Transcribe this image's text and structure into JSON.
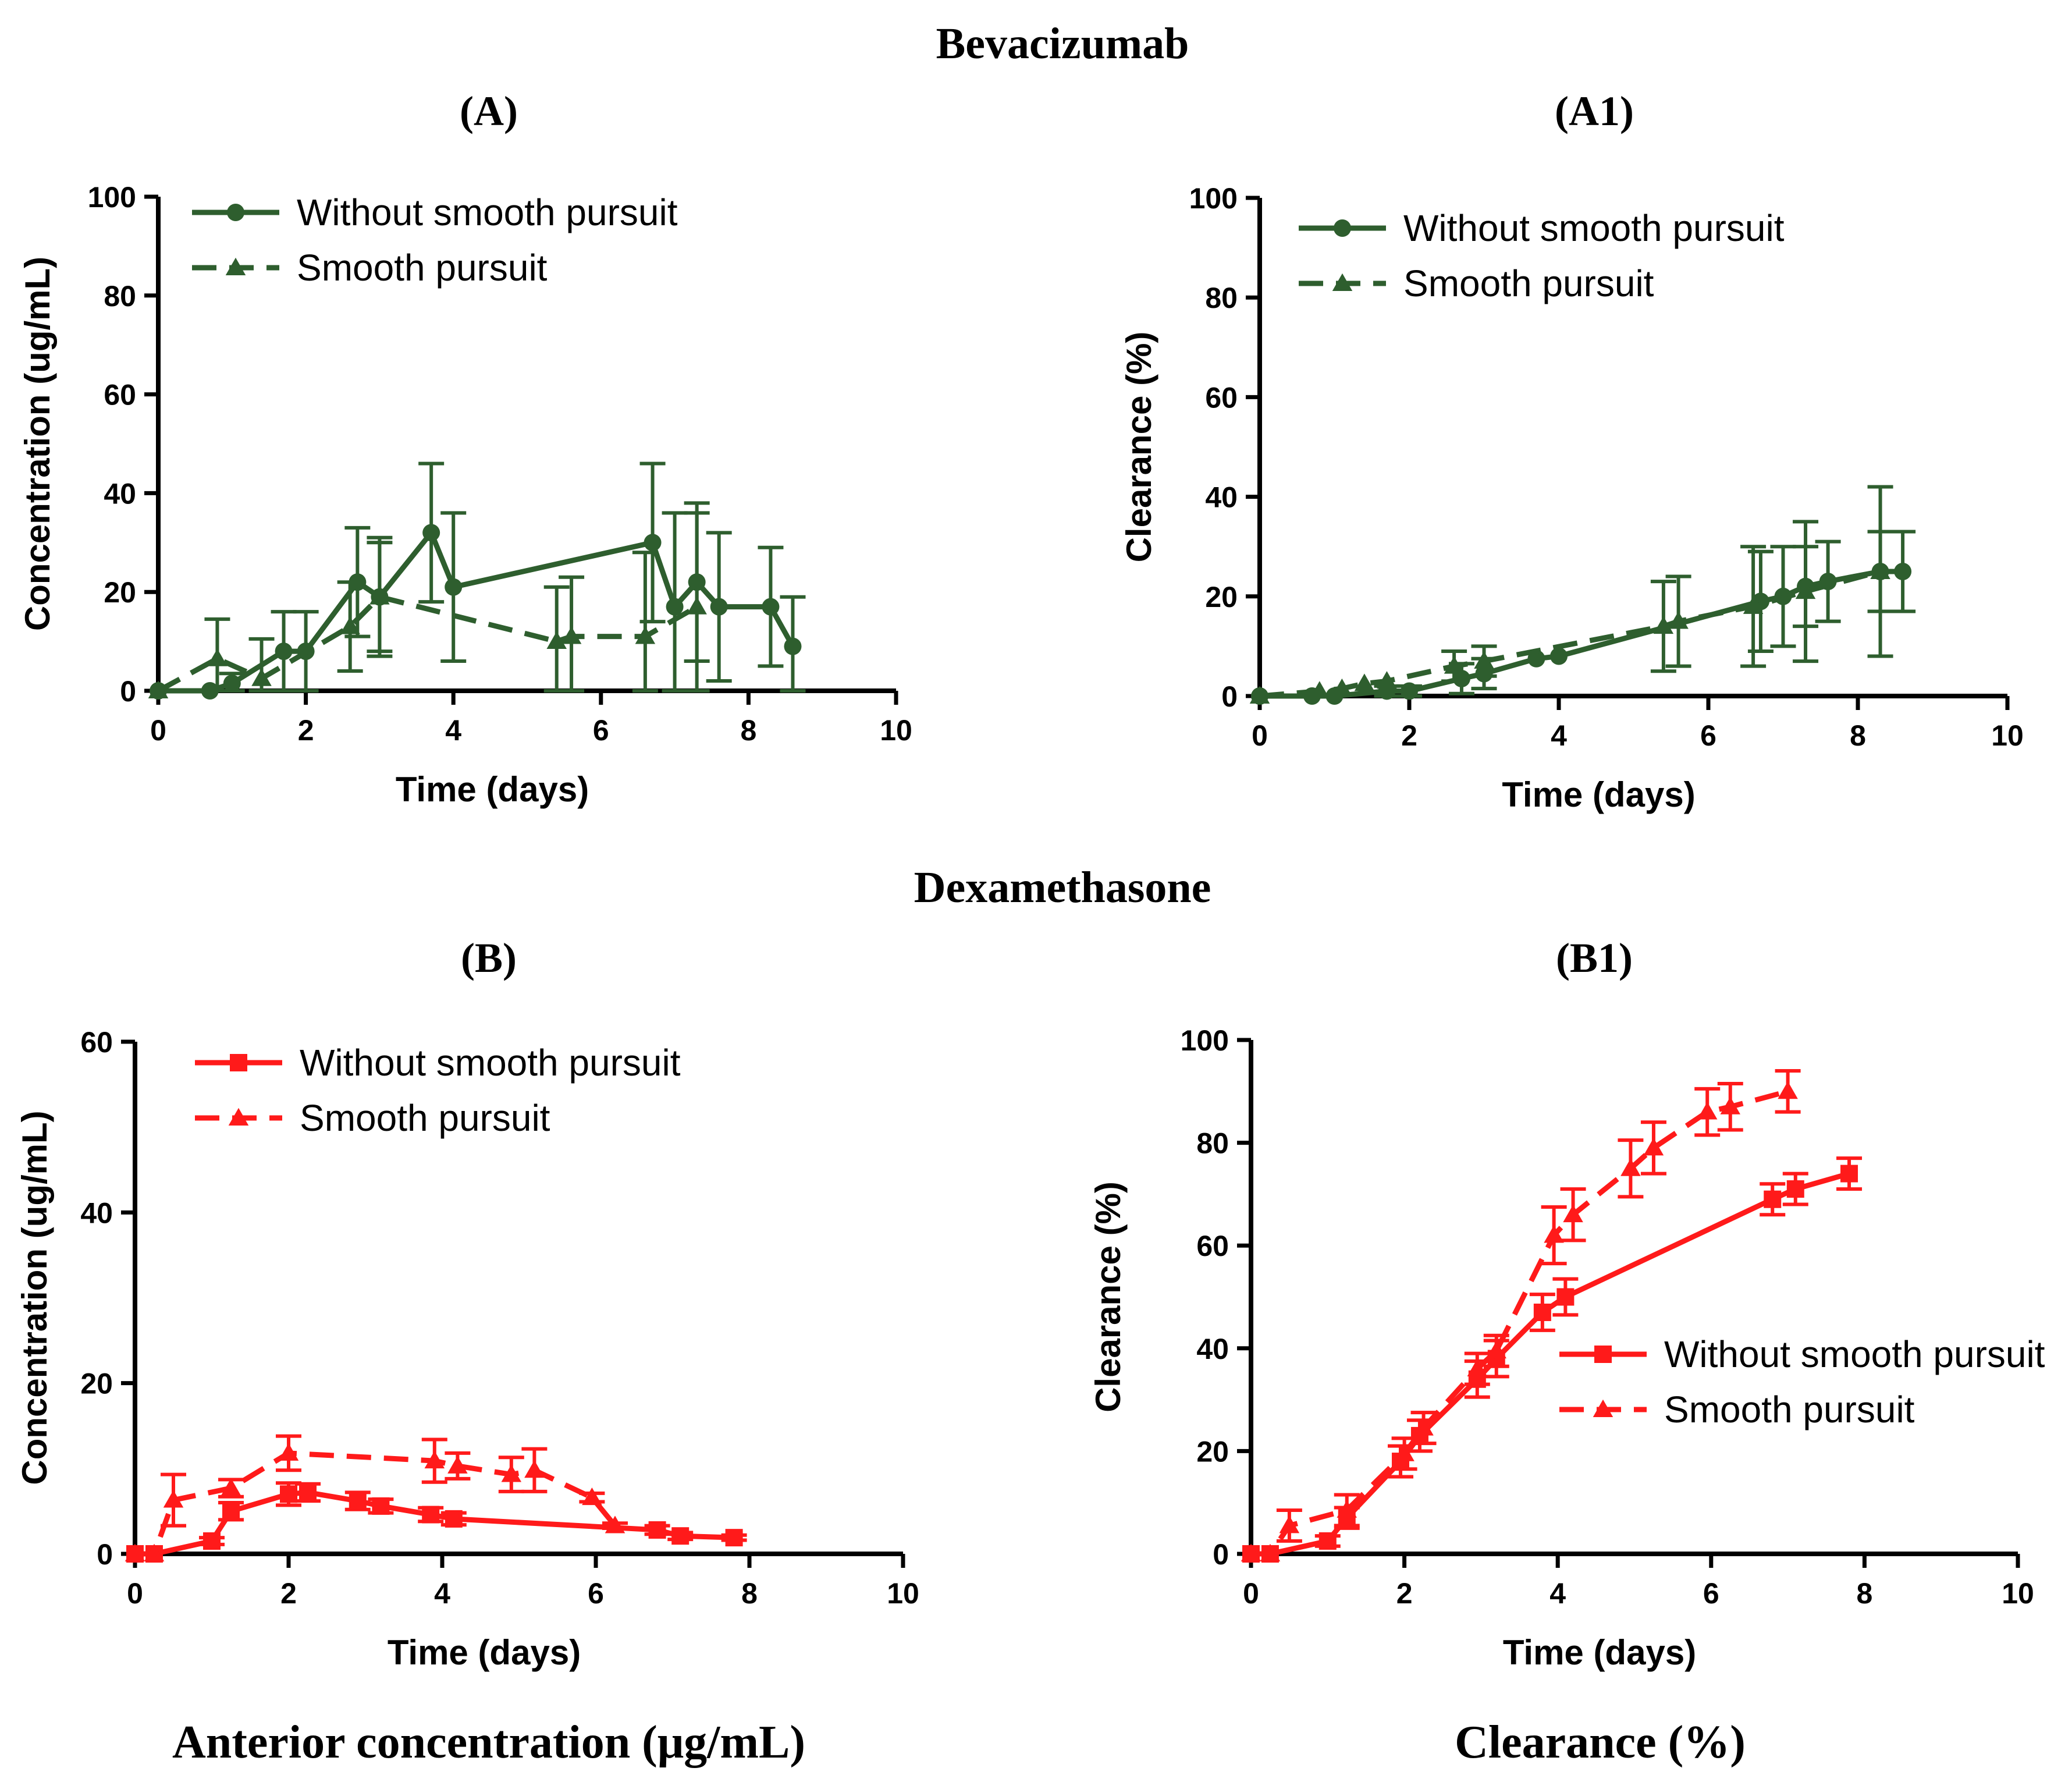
{
  "figure": {
    "section_top_title": "Bevacizumab",
    "section_bottom_title": "Dexamethasone",
    "footer_left": "Anterior concentration (μg/mL)",
    "footer_right": "Clearance (%)"
  },
  "colors": {
    "green": "#2e5e2e",
    "red": "#ff1a1a",
    "axis": "#000000"
  },
  "chart_data": [
    {
      "id": "A",
      "panel_label": "(A)",
      "type": "line",
      "color": "#2e5e2e",
      "xlabel": "Time (days)",
      "ylabel": "Concentration (ug/mL)",
      "xlim": [
        0,
        10
      ],
      "ylim": [
        0,
        100
      ],
      "xticks": [
        0,
        2,
        4,
        6,
        8,
        10
      ],
      "yticks": [
        0,
        20,
        40,
        60,
        80,
        100
      ],
      "legend_position": "top-left",
      "series": [
        {
          "name": "Without smooth pursuit",
          "marker": "circle",
          "dash": "solid",
          "x": [
            0,
            0.7,
            1.0,
            1.7,
            2.0,
            2.7,
            3.0,
            3.7,
            4.0,
            6.7,
            7.0,
            7.3,
            7.6,
            8.3,
            8.6
          ],
          "y": [
            0,
            0,
            1.5,
            8,
            8,
            22,
            19,
            32,
            21,
            30,
            17,
            22,
            17,
            17,
            9
          ],
          "err": [
            0,
            0,
            2,
            8,
            8,
            11,
            12,
            14,
            15,
            16,
            19,
            16,
            15,
            12,
            10
          ]
        },
        {
          "name": "Smooth pursuit",
          "marker": "triangle",
          "dash": "dashed",
          "x": [
            0,
            0.8,
            1.4,
            2.6,
            3.0,
            5.4,
            5.6,
            6.6,
            7.3
          ],
          "y": [
            0,
            6.5,
            2.5,
            13,
            19,
            10,
            11,
            11,
            17
          ],
          "err": [
            0,
            8,
            8,
            9,
            11,
            11,
            12,
            17,
            19
          ]
        }
      ]
    },
    {
      "id": "A1",
      "panel_label": "(A1)",
      "type": "line",
      "color": "#2e5e2e",
      "xlabel": "Time (days)",
      "ylabel": "Clearance (%)",
      "xlim": [
        0,
        10
      ],
      "ylim": [
        0,
        100
      ],
      "xticks": [
        0,
        2,
        4,
        6,
        8,
        10
      ],
      "yticks": [
        0,
        20,
        40,
        60,
        80,
        100
      ],
      "legend_position": "top-left",
      "series": [
        {
          "name": "Without smooth pursuit",
          "marker": "circle",
          "dash": "solid",
          "x": [
            0,
            0.7,
            1.0,
            1.7,
            2.0,
            2.7,
            3.0,
            3.7,
            4.0,
            6.7,
            7.0,
            7.3,
            7.6,
            8.3,
            8.6
          ],
          "y": [
            0,
            0,
            0,
            1,
            1,
            3.5,
            4.5,
            7.5,
            8,
            19,
            20,
            22,
            23,
            25,
            25
          ],
          "err": [
            0,
            0,
            0,
            1,
            1,
            3,
            3,
            0,
            0,
            10,
            10,
            8,
            8,
            8,
            8
          ]
        },
        {
          "name": "Smooth pursuit",
          "marker": "triangle",
          "dash": "dashed",
          "x": [
            0,
            0.8,
            1.1,
            1.4,
            1.7,
            2.6,
            3.0,
            5.4,
            5.6,
            6.6,
            7.3,
            8.3
          ],
          "y": [
            0,
            1,
            1.5,
            2.5,
            3,
            6,
            7,
            14,
            15,
            18,
            21,
            25
          ],
          "err": [
            0,
            0,
            0,
            0,
            0,
            3,
            3,
            9,
            9,
            12,
            14,
            17
          ]
        }
      ]
    },
    {
      "id": "B",
      "panel_label": "(B)",
      "type": "line",
      "color": "#ff1a1a",
      "xlabel": "Time (days)",
      "ylabel": "Concentration (ug/mL)",
      "xlim": [
        0,
        10
      ],
      "ylim": [
        0,
        60
      ],
      "xticks": [
        0,
        2,
        4,
        6,
        8,
        10
      ],
      "yticks": [
        0,
        20,
        40,
        60
      ],
      "legend_position": "top-left",
      "series": [
        {
          "name": "Without smooth pursuit",
          "marker": "square",
          "dash": "solid",
          "x": [
            0,
            0.25,
            1.0,
            1.25,
            2.0,
            2.25,
            2.9,
            3.2,
            3.85,
            4.15,
            6.8,
            7.1,
            7.8
          ],
          "y": [
            0,
            0,
            1.5,
            5,
            7,
            7.2,
            6.2,
            5.6,
            4.6,
            4.1,
            2.8,
            2.1,
            1.9
          ],
          "err": [
            0,
            0,
            0.4,
            1,
            1.3,
            1,
            1,
            0.8,
            0.8,
            0.7,
            0.5,
            0.4,
            0.3
          ]
        },
        {
          "name": "Smooth pursuit",
          "marker": "triangle",
          "dash": "dashed",
          "x": [
            0,
            0.25,
            0.5,
            1.25,
            2.0,
            3.9,
            4.2,
            4.9,
            5.2,
            5.95,
            6.25
          ],
          "y": [
            0,
            0,
            6.3,
            7.7,
            11.8,
            10.9,
            10.3,
            9.3,
            9.8,
            6.6,
            3.3
          ],
          "err": [
            0,
            0,
            3,
            1,
            2,
            2.5,
            1.5,
            2,
            2.5,
            0.5,
            0.3
          ]
        }
      ]
    },
    {
      "id": "B1",
      "panel_label": "(B1)",
      "type": "line",
      "color": "#ff1a1a",
      "xlabel": "Time (days)",
      "ylabel": "Clearance (%)",
      "xlim": [
        0,
        10
      ],
      "ylim": [
        0,
        100
      ],
      "xticks": [
        0,
        2,
        4,
        6,
        8,
        10
      ],
      "yticks": [
        0,
        20,
        40,
        60,
        80,
        100
      ],
      "legend_position": "center-right",
      "series": [
        {
          "name": "Without smooth pursuit",
          "marker": "square",
          "dash": "solid",
          "x": [
            0,
            0.25,
            1.0,
            1.25,
            1.95,
            2.2,
            2.95,
            3.2,
            3.8,
            4.1,
            6.8,
            7.1,
            7.8
          ],
          "y": [
            0,
            0,
            2.5,
            7,
            18,
            23,
            34,
            38,
            47,
            50,
            69,
            71,
            74
          ],
          "err": [
            0,
            0,
            1,
            2,
            3,
            3,
            3.5,
            3.5,
            3.5,
            3.5,
            3,
            3,
            3
          ]
        },
        {
          "name": "Smooth pursuit",
          "marker": "triangle",
          "dash": "dashed",
          "x": [
            0,
            0.25,
            0.5,
            1.25,
            2.0,
            2.25,
            2.95,
            3.2,
            3.95,
            4.2,
            4.95,
            5.25,
            5.95,
            6.25,
            7.0
          ],
          "y": [
            0,
            0,
            5.5,
            8.5,
            19.5,
            24.5,
            36,
            39.5,
            62,
            66,
            75,
            79,
            86,
            87,
            90
          ],
          "err": [
            0,
            0,
            3,
            3,
            3,
            3,
            3,
            3,
            5.5,
            5,
            5.5,
            5,
            4.5,
            4.5,
            4
          ]
        }
      ]
    }
  ]
}
